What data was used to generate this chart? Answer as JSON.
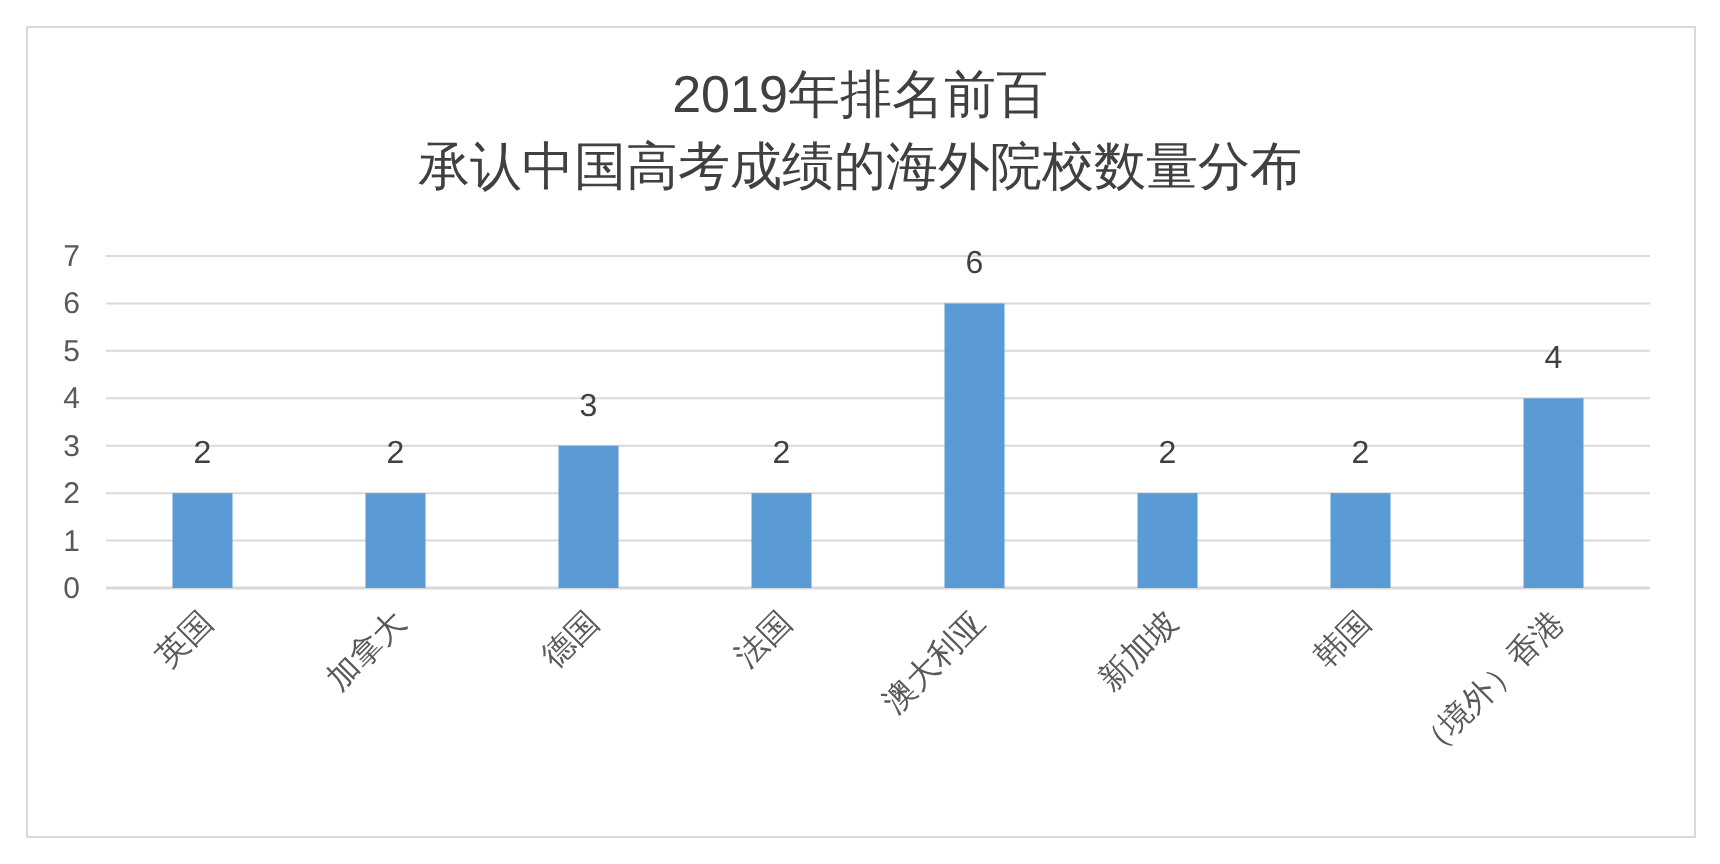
{
  "chart_data": {
    "type": "bar",
    "title": "2019年排名前百",
    "subtitle": "承认中国高考成绩的海外院校数量分布",
    "categories": [
      "英国",
      "加拿大",
      "德国",
      "法国",
      "澳大利亚",
      "新加坡",
      "韩国",
      "（境外）香港"
    ],
    "values": [
      2,
      2,
      3,
      2,
      6,
      2,
      2,
      4
    ],
    "color": "#5b9bd5",
    "ylim": [
      0,
      7
    ],
    "yticks": [
      0,
      1,
      2,
      3,
      4,
      5,
      6,
      7
    ],
    "grid": "y",
    "data_labels": true
  }
}
